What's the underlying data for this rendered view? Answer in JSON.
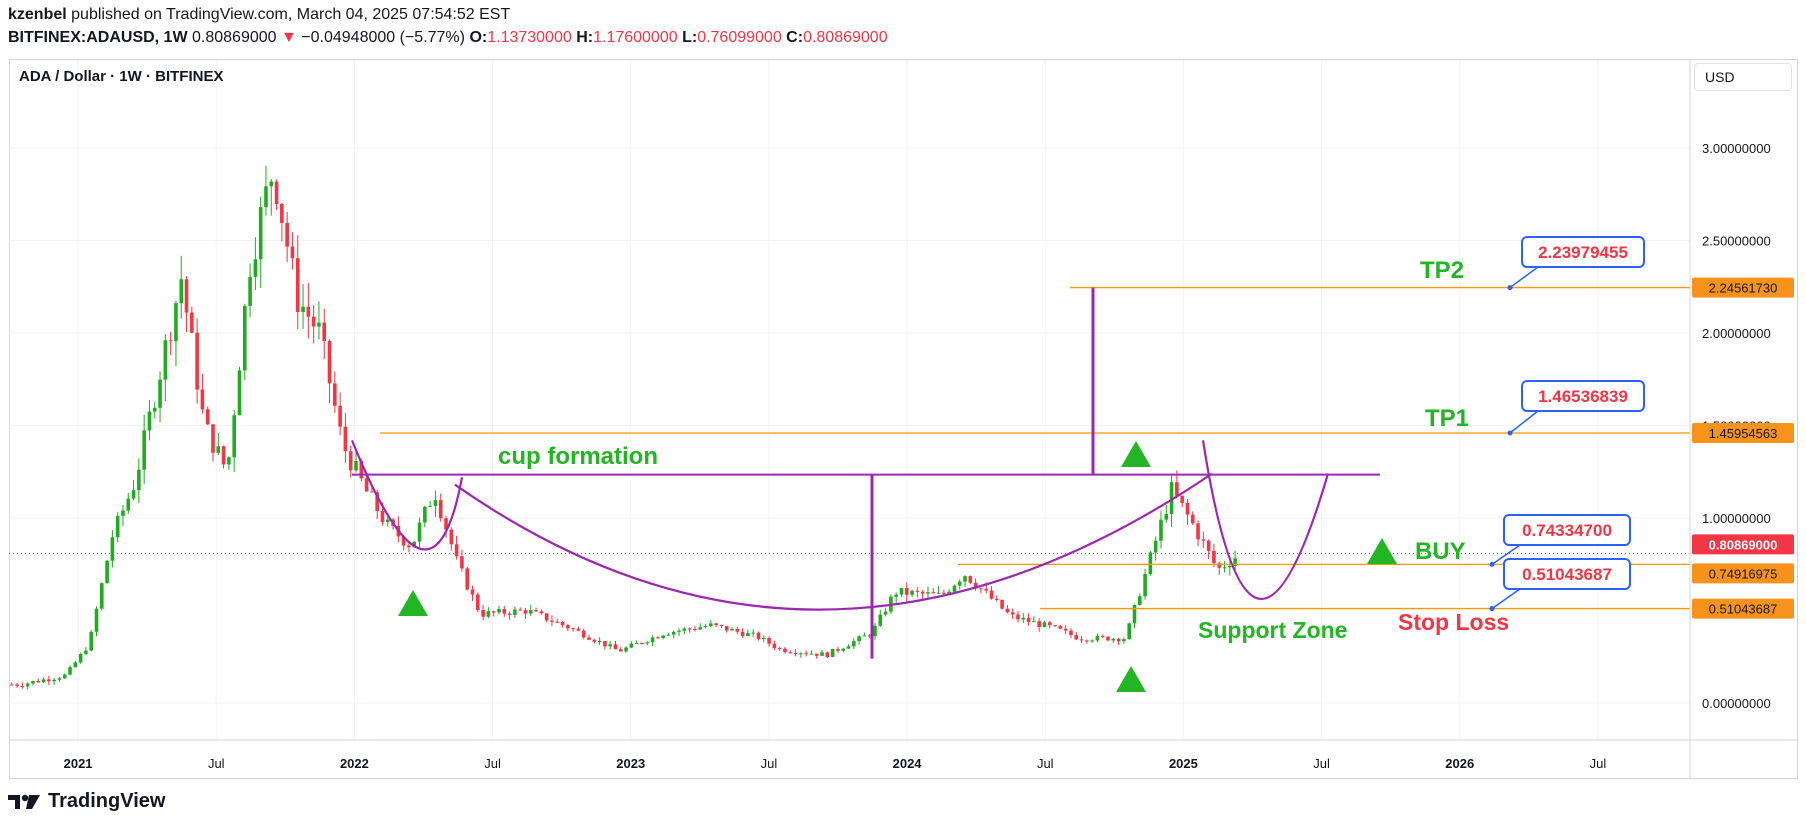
{
  "header": {
    "author": "kzenbel",
    "published": "published on TradingView.com, March 04, 2025 07:54:52 EST",
    "symbol": "BITFINEX:ADAUSD, 1W",
    "last": "0.80869000",
    "change": "−0.04948000 (−5.77%)",
    "o_label": "O:",
    "o": "1.13730000",
    "h_label": "H:",
    "h": "1.17600000",
    "l_label": "L:",
    "l": "0.76099000",
    "c_label": "C:",
    "c": "0.80869000"
  },
  "pane_title": "ADA / Dollar · 1W · BITFINEX",
  "currency_button": "USD",
  "brand": "TradingView",
  "colors": {
    "up": "#22ab22",
    "down": "#f23645",
    "purple": "#9c27b0",
    "orange_line": "#ff9800",
    "orange_label": "#f7931a",
    "green_text": "#24b524",
    "callout_border": "#2962ff"
  },
  "chart_data": {
    "type": "candlestick",
    "title": "ADA / Dollar · 1W · BITFINEX",
    "y_axis_ticks": [
      "3.00000000",
      "2.50000000",
      "2.00000000",
      "1.50000000",
      "1.00000000",
      "0.00000000"
    ],
    "x_axis_ticks": [
      "2021",
      "Jul",
      "2022",
      "Jul",
      "2023",
      "Jul",
      "2024",
      "Jul",
      "2025",
      "Jul",
      "2026",
      "Jul"
    ],
    "price_labels": [
      {
        "value": "2.24561730",
        "kind": "tp2"
      },
      {
        "value": "1.45954563",
        "kind": "tp1"
      },
      {
        "value": "0.80869000",
        "kind": "last"
      },
      {
        "value": "0.74916975",
        "kind": "buy"
      },
      {
        "value": "0.51043687",
        "kind": "stop"
      }
    ],
    "callouts": [
      "2.23979455",
      "1.46536839",
      "0.74334700",
      "0.51043687"
    ],
    "annotations": [
      "cup formation",
      "TP2",
      "TP1",
      "BUY",
      "Support Zone",
      "Stop Loss"
    ],
    "price_path": [
      [
        "2020-10",
        0.1
      ],
      [
        "2020-12",
        0.15
      ],
      [
        "2021-01",
        0.32
      ],
      [
        "2021-02",
        0.9
      ],
      [
        "2021-03",
        1.2
      ],
      [
        "2021-05",
        2.3
      ],
      [
        "2021-06",
        1.5
      ],
      [
        "2021-07",
        1.25
      ],
      [
        "2021-08",
        2.4
      ],
      [
        "2021-09",
        2.9
      ],
      [
        "2021-10",
        2.2
      ],
      [
        "2021-11",
        2.0
      ],
      [
        "2021-12",
        1.4
      ],
      [
        "2022-01",
        1.15
      ],
      [
        "2022-02",
        0.95
      ],
      [
        "2022-03",
        0.85
      ],
      [
        "2022-04",
        1.15
      ],
      [
        "2022-05",
        0.75
      ],
      [
        "2022-06",
        0.48
      ],
      [
        "2022-08",
        0.5
      ],
      [
        "2022-10",
        0.4
      ],
      [
        "2022-12",
        0.28
      ],
      [
        "2023-02",
        0.38
      ],
      [
        "2023-04",
        0.42
      ],
      [
        "2023-06",
        0.36
      ],
      [
        "2023-07",
        0.29
      ],
      [
        "2023-09",
        0.26
      ],
      [
        "2023-11",
        0.38
      ],
      [
        "2023-12",
        0.6
      ],
      [
        "2024-02",
        0.58
      ],
      [
        "2024-03",
        0.7
      ],
      [
        "2024-05",
        0.47
      ],
      [
        "2024-07",
        0.4
      ],
      [
        "2024-08",
        0.35
      ],
      [
        "2024-10",
        0.35
      ],
      [
        "2024-11",
        0.75
      ],
      [
        "2024-12",
        1.15
      ],
      [
        "2025-01",
        0.95
      ],
      [
        "2025-02",
        0.72
      ],
      [
        "2025-03",
        0.81
      ]
    ]
  }
}
